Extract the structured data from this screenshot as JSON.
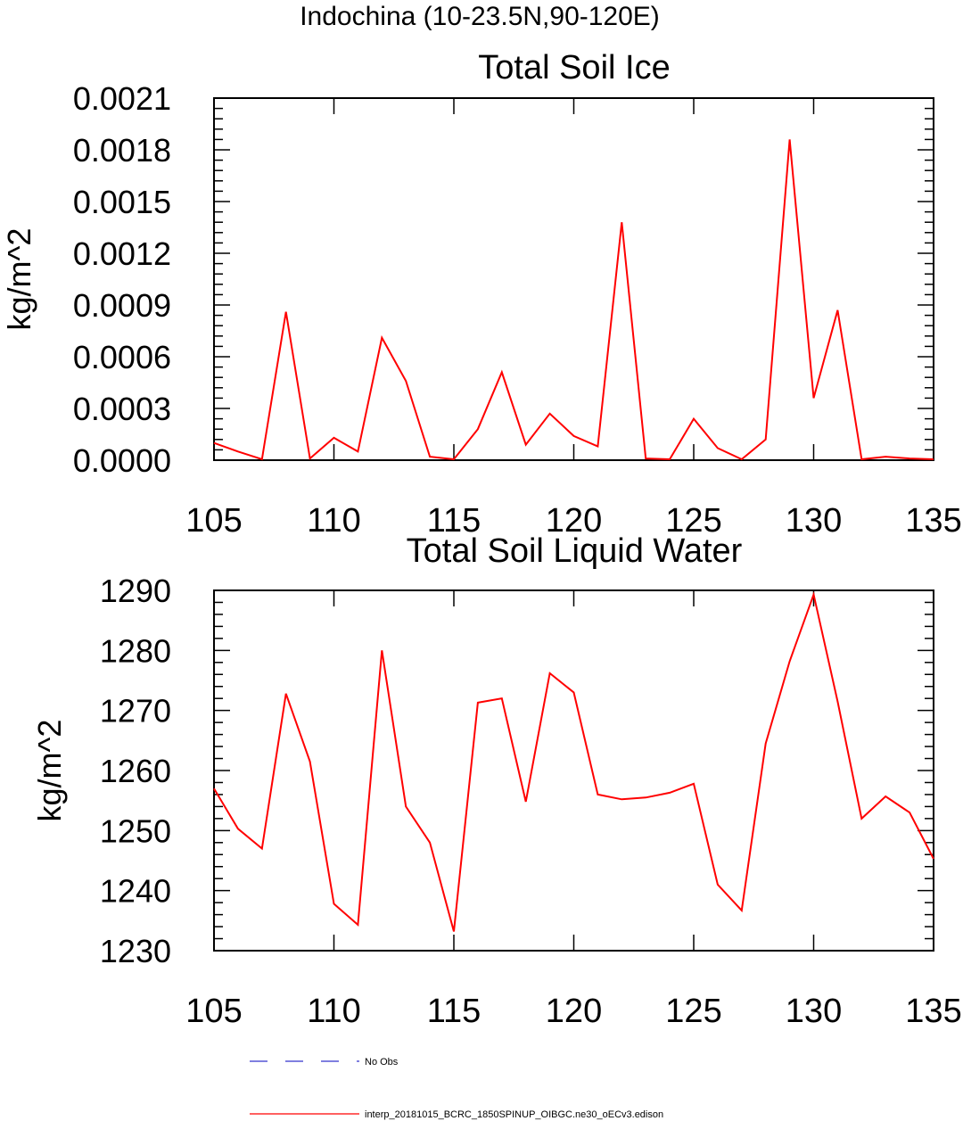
{
  "suptitle": "Indochina (10-23.5N,90-120E)",
  "chart_data": [
    {
      "type": "line",
      "title": "Total Soil Ice",
      "ylabel": "kg/m^2",
      "xlabel": "",
      "xlim": [
        105,
        135
      ],
      "ylim": [
        0,
        0.0021
      ],
      "xticks": [
        "105",
        "110",
        "115",
        "120",
        "125",
        "130",
        "135"
      ],
      "yticks": [
        "0.0000",
        "0.0003",
        "0.0006",
        "0.0009",
        "0.0012",
        "0.0015",
        "0.0018",
        "0.0021"
      ],
      "color": "#ff0000",
      "x": [
        105,
        106,
        107,
        108,
        109,
        110,
        111,
        112,
        113,
        114,
        115,
        116,
        117,
        118,
        119,
        120,
        121,
        122,
        123,
        124,
        125,
        126,
        127,
        128,
        129,
        130,
        131,
        132,
        133,
        134,
        135
      ],
      "y": [
        0.0001,
        5e-05,
        5e-06,
        0.00086,
        1e-05,
        0.00013,
        5e-05,
        0.00071,
        0.00046,
        2e-05,
        5e-06,
        0.00018,
        0.00051,
        9e-05,
        0.00027,
        0.00014,
        8e-05,
        0.00138,
        1e-05,
        5e-06,
        0.00024,
        7e-05,
        5e-06,
        0.00012,
        0.00186,
        0.00036,
        0.00087,
        5e-06,
        2e-05,
        1e-05,
        5e-06
      ]
    },
    {
      "type": "line",
      "title": "Total Soil Liquid Water",
      "ylabel": "kg/m^2",
      "xlabel": "",
      "xlim": [
        105,
        135
      ],
      "ylim": [
        1230,
        1290
      ],
      "xticks": [
        "105",
        "110",
        "115",
        "120",
        "125",
        "130",
        "135"
      ],
      "yticks": [
        "1230",
        "1240",
        "1250",
        "1260",
        "1270",
        "1280",
        "1290"
      ],
      "color": "#ff0000",
      "x": [
        105,
        106,
        107,
        108,
        109,
        110,
        111,
        112,
        113,
        114,
        115,
        116,
        117,
        118,
        119,
        120,
        121,
        122,
        123,
        124,
        125,
        126,
        127,
        128,
        129,
        130,
        131,
        132,
        133,
        134,
        135
      ],
      "y": [
        1257,
        1250.3,
        1247,
        1272.8,
        1261.5,
        1237.8,
        1234.3,
        1280,
        1254,
        1248,
        1233.2,
        1271.3,
        1272,
        1254.8,
        1276.2,
        1273,
        1256,
        1255.2,
        1255.5,
        1256.3,
        1257.8,
        1241,
        1236.7,
        1264.5,
        1278.2,
        1289.3,
        1271.5,
        1252,
        1255.7,
        1253,
        1245.3
      ]
    }
  ],
  "legend": {
    "items": [
      {
        "label": "No Obs",
        "color": "#3333cc",
        "style": "dashed"
      },
      {
        "label": "interp_20181015_BCRC_1850SPINUP_OIBGC.ne30_oECv3.edison",
        "color": "#ff0000",
        "style": "solid"
      }
    ]
  }
}
